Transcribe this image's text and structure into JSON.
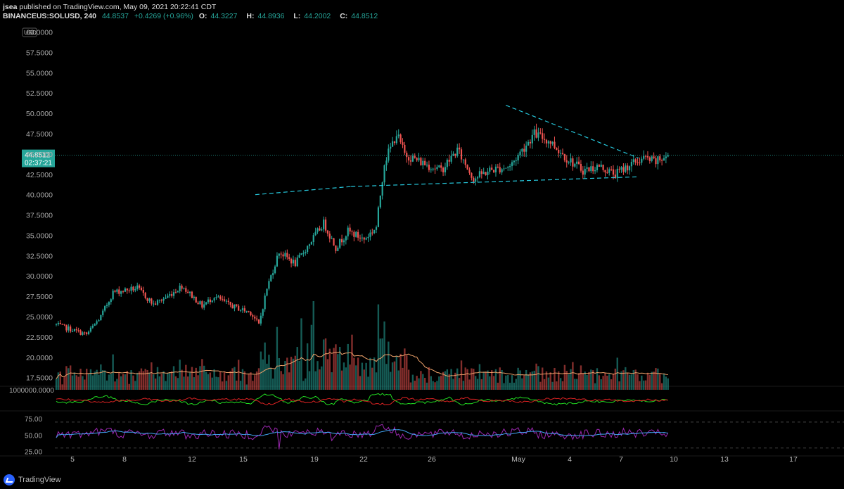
{
  "header": {
    "author": "jsea",
    "published_text": "published on TradingView.com, May 09, 2021 20:22:41 CDT",
    "symbol": "BINANCEUS:SOLUSD, 240",
    "last_price": "44.8537",
    "change": "+0.4269 (+0.96%)",
    "open_label": "O:",
    "open": "44.3227",
    "high_label": "H:",
    "high": "44.8936",
    "low_label": "L:",
    "low": "44.2002",
    "close_label": "C:",
    "close": "44.8512"
  },
  "colors": {
    "up": "#26a69a",
    "down": "#ef5350",
    "trendline": "#26c6da",
    "volume_ma": "#f0a36b",
    "rsi": "#9c27b0",
    "rsi_ma": "#42a5f5",
    "dmi_plus": "#22dd22",
    "dmi_minus": "#dd2222"
  },
  "price_axis": {
    "unit": "USD",
    "ticks": [
      "60.0000",
      "57.5000",
      "55.0000",
      "52.5000",
      "50.0000",
      "47.5000",
      "45.0000",
      "42.5000",
      "40.0000",
      "37.5000",
      "35.0000",
      "32.5000",
      "30.0000",
      "27.5000",
      "25.0000",
      "22.5000",
      "20.0000",
      "17.5000"
    ],
    "current_price": "44.8512",
    "countdown": "02:37:21"
  },
  "indicator1_axis": {
    "ticks": [
      "1000000.0000"
    ]
  },
  "rsi_axis": {
    "ticks": [
      "75.00",
      "50.00",
      "25.00"
    ]
  },
  "time_axis": {
    "ticks": [
      "5",
      "8",
      "12",
      "15",
      "19",
      "22",
      "26",
      "May",
      "4",
      "7",
      "10",
      "13",
      "17"
    ]
  },
  "chart_data": {
    "type": "candlestick",
    "symbol": "BINANCEUS:SOLUSD",
    "interval": "240",
    "ylim": [
      16.0,
      61.0
    ],
    "price_path": [
      [
        0,
        24.0
      ],
      [
        10,
        23.2
      ],
      [
        15,
        22.8
      ],
      [
        22,
        25.0
      ],
      [
        28,
        28.0
      ],
      [
        40,
        28.5
      ],
      [
        48,
        26.5
      ],
      [
        55,
        27.5
      ],
      [
        62,
        28.8
      ],
      [
        72,
        26.3
      ],
      [
        78,
        27.5
      ],
      [
        85,
        26.5
      ],
      [
        90,
        26.0
      ],
      [
        96,
        25.5
      ],
      [
        100,
        24.0
      ],
      [
        104,
        28.5
      ],
      [
        110,
        33.0
      ],
      [
        118,
        31.5
      ],
      [
        125,
        34.0
      ],
      [
        132,
        36.5
      ],
      [
        138,
        33.5
      ],
      [
        144,
        35.5
      ],
      [
        152,
        34.5
      ],
      [
        158,
        36.0
      ],
      [
        162,
        44.0
      ],
      [
        168,
        47.5
      ],
      [
        172,
        45.0
      ],
      [
        180,
        44.0
      ],
      [
        190,
        43.0
      ],
      [
        198,
        45.5
      ],
      [
        206,
        42.0
      ],
      [
        214,
        43.0
      ],
      [
        224,
        43.5
      ],
      [
        236,
        47.5
      ],
      [
        244,
        46.5
      ],
      [
        252,
        44.5
      ],
      [
        260,
        43.0
      ],
      [
        268,
        43.5
      ],
      [
        276,
        42.5
      ],
      [
        282,
        43.5
      ],
      [
        290,
        44.5
      ],
      [
        296,
        44.0
      ],
      [
        302,
        44.85
      ]
    ],
    "trendlines": [
      {
        "from": [
          0.27,
          40.0
        ],
        "to": [
          0.4,
          41.0
        ]
      },
      {
        "from": [
          0.4,
          41.0
        ],
        "to": [
          0.79,
          42.2
        ]
      },
      {
        "from": [
          0.61,
          51.0
        ],
        "to": [
          0.79,
          44.5
        ]
      }
    ],
    "indicators": [
      "Volume",
      "Volume MA",
      "DMI",
      "RSI",
      "RSI MA"
    ],
    "rsi_levels": [
      70,
      30
    ]
  },
  "footer": {
    "brand": "TradingView"
  }
}
